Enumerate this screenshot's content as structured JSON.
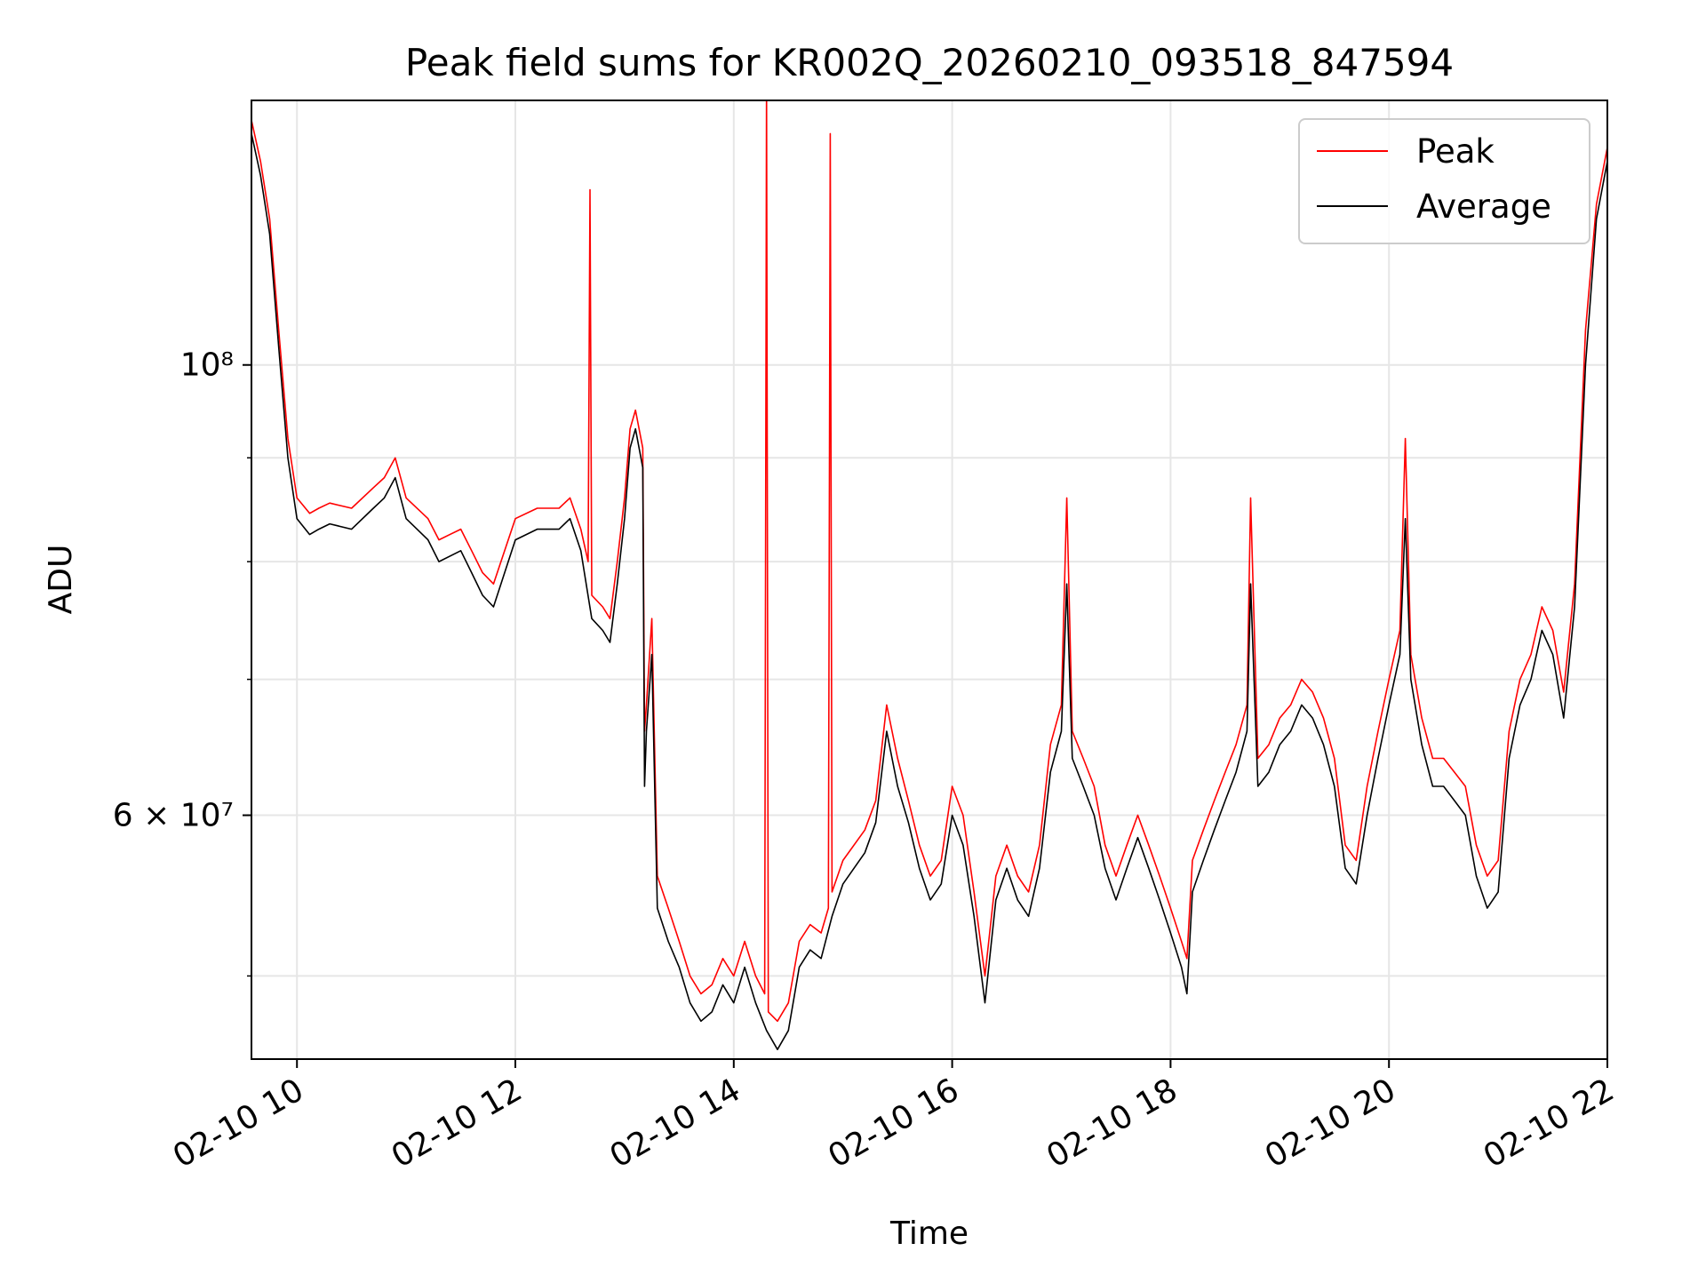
{
  "chart_data": {
    "type": "line",
    "title": "Peak field sums for KR002Q_20260210_093518_847594",
    "xlabel": "Time",
    "ylabel": "ADU",
    "x_unit": "hours since 2026-02-10 00:00",
    "xlim": [
      "2026-02-10 09:35",
      "2026-02-10 22:00"
    ],
    "ylim": [
      45500000,
      135000000
    ],
    "yscale": "log",
    "grid": true,
    "legend_position": "upper right",
    "x_ticks": [
      {
        "value": "2026-02-10 10:00",
        "label": "02-10 10"
      },
      {
        "value": "2026-02-10 12:00",
        "label": "02-10 12"
      },
      {
        "value": "2026-02-10 14:00",
        "label": "02-10 14"
      },
      {
        "value": "2026-02-10 16:00",
        "label": "02-10 16"
      },
      {
        "value": "2026-02-10 18:00",
        "label": "02-10 18"
      },
      {
        "value": "2026-02-10 20:00",
        "label": "02-10 20"
      },
      {
        "value": "2026-02-10 22:00",
        "label": "02-10 22"
      }
    ],
    "y_ticks_major": [
      {
        "value": 60000000,
        "label": "6 × 10⁷"
      },
      {
        "value": 100000000,
        "label": "10⁸"
      }
    ],
    "series": [
      {
        "name": "Peak",
        "color": "#ff0000",
        "x": [
          "2026-02-10 09:35",
          "2026-02-10 09:40",
          "2026-02-10 09:45",
          "2026-02-10 09:50",
          "2026-02-10 09:55",
          "2026-02-10 10:00",
          "2026-02-10 10:07",
          "2026-02-10 10:12",
          "2026-02-10 10:18",
          "2026-02-10 10:30",
          "2026-02-10 10:42",
          "2026-02-10 10:48",
          "2026-02-10 10:54",
          "2026-02-10 11:00",
          "2026-02-10 11:12",
          "2026-02-10 11:18",
          "2026-02-10 11:30",
          "2026-02-10 11:36",
          "2026-02-10 11:42",
          "2026-02-10 11:48",
          "2026-02-10 12:00",
          "2026-02-10 12:12",
          "2026-02-10 12:24",
          "2026-02-10 12:30",
          "2026-02-10 12:36",
          "2026-02-10 12:40",
          "2026-02-10 12:41",
          "2026-02-10 12:42",
          "2026-02-10 12:48",
          "2026-02-10 12:52",
          "2026-02-10 12:56",
          "2026-02-10 13:00",
          "2026-02-10 13:03",
          "2026-02-10 13:06",
          "2026-02-10 13:10",
          "2026-02-10 13:11",
          "2026-02-10 13:12",
          "2026-02-10 13:15",
          "2026-02-10 13:18",
          "2026-02-10 13:24",
          "2026-02-10 13:30",
          "2026-02-10 13:36",
          "2026-02-10 13:42",
          "2026-02-10 13:48",
          "2026-02-10 13:54",
          "2026-02-10 14:00",
          "2026-02-10 14:06",
          "2026-02-10 14:12",
          "2026-02-10 14:17",
          "2026-02-10 14:18",
          "2026-02-10 14:19",
          "2026-02-10 14:24",
          "2026-02-10 14:30",
          "2026-02-10 14:36",
          "2026-02-10 14:42",
          "2026-02-10 14:48",
          "2026-02-10 14:52",
          "2026-02-10 14:53",
          "2026-02-10 14:54",
          "2026-02-10 15:00",
          "2026-02-10 15:12",
          "2026-02-10 15:18",
          "2026-02-10 15:24",
          "2026-02-10 15:30",
          "2026-02-10 15:36",
          "2026-02-10 15:42",
          "2026-02-10 15:48",
          "2026-02-10 15:54",
          "2026-02-10 16:00",
          "2026-02-10 16:06",
          "2026-02-10 16:12",
          "2026-02-10 16:18",
          "2026-02-10 16:24",
          "2026-02-10 16:30",
          "2026-02-10 16:36",
          "2026-02-10 16:42",
          "2026-02-10 16:48",
          "2026-02-10 16:54",
          "2026-02-10 17:00",
          "2026-02-10 17:03",
          "2026-02-10 17:06",
          "2026-02-10 17:12",
          "2026-02-10 17:18",
          "2026-02-10 17:24",
          "2026-02-10 17:30",
          "2026-02-10 17:36",
          "2026-02-10 17:42",
          "2026-02-10 17:48",
          "2026-02-10 17:54",
          "2026-02-10 18:00",
          "2026-02-10 18:06",
          "2026-02-10 18:09",
          "2026-02-10 18:12",
          "2026-02-10 18:18",
          "2026-02-10 18:24",
          "2026-02-10 18:30",
          "2026-02-10 18:36",
          "2026-02-10 18:42",
          "2026-02-10 18:44",
          "2026-02-10 18:48",
          "2026-02-10 18:54",
          "2026-02-10 19:00",
          "2026-02-10 19:06",
          "2026-02-10 19:12",
          "2026-02-10 19:18",
          "2026-02-10 19:24",
          "2026-02-10 19:30",
          "2026-02-10 19:36",
          "2026-02-10 19:42",
          "2026-02-10 19:48",
          "2026-02-10 19:54",
          "2026-02-10 20:00",
          "2026-02-10 20:06",
          "2026-02-10 20:09",
          "2026-02-10 20:12",
          "2026-02-10 20:18",
          "2026-02-10 20:24",
          "2026-02-10 20:30",
          "2026-02-10 20:36",
          "2026-02-10 20:42",
          "2026-02-10 20:48",
          "2026-02-10 20:54",
          "2026-02-10 21:00",
          "2026-02-10 21:06",
          "2026-02-10 21:12",
          "2026-02-10 21:18",
          "2026-02-10 21:24",
          "2026-02-10 21:30",
          "2026-02-10 21:36",
          "2026-02-10 21:42",
          "2026-02-10 21:48",
          "2026-02-10 21:54",
          "2026-02-10 22:00"
        ],
        "values": [
          132000000,
          126000000,
          118000000,
          104000000,
          92000000,
          86000000,
          84500000,
          85000000,
          85500000,
          85000000,
          87000000,
          88000000,
          90000000,
          86000000,
          84000000,
          82000000,
          83000000,
          81000000,
          79000000,
          78000000,
          84000000,
          85000000,
          85000000,
          86000000,
          83000000,
          80000000,
          122000000,
          77000000,
          76000000,
          75000000,
          80000000,
          86000000,
          93000000,
          95000000,
          91000000,
          66000000,
          68000000,
          75000000,
          56000000,
          54000000,
          52000000,
          50000000,
          49000000,
          49500000,
          51000000,
          50000000,
          52000000,
          50000000,
          49000000,
          138000000,
          48000000,
          47500000,
          48500000,
          52000000,
          53000000,
          52500000,
          54000000,
          130000000,
          55000000,
          57000000,
          59000000,
          61000000,
          68000000,
          64000000,
          61000000,
          58000000,
          56000000,
          57000000,
          62000000,
          60000000,
          55000000,
          50000000,
          56000000,
          58000000,
          56000000,
          55000000,
          58000000,
          65000000,
          68000000,
          86000000,
          66000000,
          64000000,
          62000000,
          58000000,
          56000000,
          58000000,
          60000000,
          58000000,
          56000000,
          54000000,
          52000000,
          51000000,
          57000000,
          59000000,
          61000000,
          63000000,
          65000000,
          68000000,
          86000000,
          64000000,
          65000000,
          67000000,
          68000000,
          70000000,
          69000000,
          67000000,
          64000000,
          58000000,
          57000000,
          62000000,
          66000000,
          70000000,
          74000000,
          92000000,
          72000000,
          67000000,
          64000000,
          64000000,
          63000000,
          62000000,
          58000000,
          56000000,
          57000000,
          66000000,
          70000000,
          72000000,
          76000000,
          74000000,
          69000000,
          78000000,
          104000000,
          120000000,
          128000000
        ]
      },
      {
        "name": "Average",
        "color": "#000000",
        "x": [
          "2026-02-10 09:35",
          "2026-02-10 09:40",
          "2026-02-10 09:45",
          "2026-02-10 09:50",
          "2026-02-10 09:55",
          "2026-02-10 10:00",
          "2026-02-10 10:07",
          "2026-02-10 10:12",
          "2026-02-10 10:18",
          "2026-02-10 10:30",
          "2026-02-10 10:42",
          "2026-02-10 10:48",
          "2026-02-10 10:54",
          "2026-02-10 11:00",
          "2026-02-10 11:12",
          "2026-02-10 11:18",
          "2026-02-10 11:30",
          "2026-02-10 11:36",
          "2026-02-10 11:42",
          "2026-02-10 11:48",
          "2026-02-10 12:00",
          "2026-02-10 12:12",
          "2026-02-10 12:24",
          "2026-02-10 12:30",
          "2026-02-10 12:36",
          "2026-02-10 12:42",
          "2026-02-10 12:48",
          "2026-02-10 12:52",
          "2026-02-10 12:56",
          "2026-02-10 13:00",
          "2026-02-10 13:03",
          "2026-02-10 13:06",
          "2026-02-10 13:10",
          "2026-02-10 13:11",
          "2026-02-10 13:12",
          "2026-02-10 13:15",
          "2026-02-10 13:18",
          "2026-02-10 13:24",
          "2026-02-10 13:30",
          "2026-02-10 13:36",
          "2026-02-10 13:42",
          "2026-02-10 13:48",
          "2026-02-10 13:54",
          "2026-02-10 14:00",
          "2026-02-10 14:06",
          "2026-02-10 14:12",
          "2026-02-10 14:18",
          "2026-02-10 14:24",
          "2026-02-10 14:30",
          "2026-02-10 14:36",
          "2026-02-10 14:42",
          "2026-02-10 14:48",
          "2026-02-10 14:54",
          "2026-02-10 15:00",
          "2026-02-10 15:12",
          "2026-02-10 15:18",
          "2026-02-10 15:24",
          "2026-02-10 15:30",
          "2026-02-10 15:36",
          "2026-02-10 15:42",
          "2026-02-10 15:48",
          "2026-02-10 15:54",
          "2026-02-10 16:00",
          "2026-02-10 16:06",
          "2026-02-10 16:12",
          "2026-02-10 16:18",
          "2026-02-10 16:24",
          "2026-02-10 16:30",
          "2026-02-10 16:36",
          "2026-02-10 16:42",
          "2026-02-10 16:48",
          "2026-02-10 16:54",
          "2026-02-10 17:00",
          "2026-02-10 17:03",
          "2026-02-10 17:06",
          "2026-02-10 17:12",
          "2026-02-10 17:18",
          "2026-02-10 17:24",
          "2026-02-10 17:30",
          "2026-02-10 17:36",
          "2026-02-10 17:42",
          "2026-02-10 17:48",
          "2026-02-10 17:54",
          "2026-02-10 18:00",
          "2026-02-10 18:06",
          "2026-02-10 18:09",
          "2026-02-10 18:12",
          "2026-02-10 18:18",
          "2026-02-10 18:24",
          "2026-02-10 18:30",
          "2026-02-10 18:36",
          "2026-02-10 18:42",
          "2026-02-10 18:44",
          "2026-02-10 18:48",
          "2026-02-10 18:54",
          "2026-02-10 19:00",
          "2026-02-10 19:06",
          "2026-02-10 19:12",
          "2026-02-10 19:18",
          "2026-02-10 19:24",
          "2026-02-10 19:30",
          "2026-02-10 19:36",
          "2026-02-10 19:42",
          "2026-02-10 19:48",
          "2026-02-10 19:54",
          "2026-02-10 20:00",
          "2026-02-10 20:06",
          "2026-02-10 20:09",
          "2026-02-10 20:12",
          "2026-02-10 20:18",
          "2026-02-10 20:24",
          "2026-02-10 20:30",
          "2026-02-10 20:36",
          "2026-02-10 20:42",
          "2026-02-10 20:48",
          "2026-02-10 20:54",
          "2026-02-10 21:00",
          "2026-02-10 21:06",
          "2026-02-10 21:12",
          "2026-02-10 21:18",
          "2026-02-10 21:24",
          "2026-02-10 21:30",
          "2026-02-10 21:36",
          "2026-02-10 21:42",
          "2026-02-10 21:48",
          "2026-02-10 21:54",
          "2026-02-10 22:00"
        ],
        "values": [
          130000000,
          124000000,
          116000000,
          102000000,
          90000000,
          84000000,
          82500000,
          83000000,
          83500000,
          83000000,
          85000000,
          86000000,
          88000000,
          84000000,
          82000000,
          80000000,
          81000000,
          79000000,
          77000000,
          76000000,
          82000000,
          83000000,
          83000000,
          84000000,
          81000000,
          75000000,
          74000000,
          73000000,
          78000000,
          84000000,
          91000000,
          93000000,
          89000000,
          62000000,
          66000000,
          72000000,
          54000000,
          52000000,
          50500000,
          48500000,
          47500000,
          48000000,
          49500000,
          48500000,
          50500000,
          48500000,
          47000000,
          46000000,
          47000000,
          50500000,
          51500000,
          51000000,
          53500000,
          55500000,
          57500000,
          59500000,
          66000000,
          62000000,
          59500000,
          56500000,
          54500000,
          55500000,
          60000000,
          58000000,
          53500000,
          48500000,
          54500000,
          56500000,
          54500000,
          53500000,
          56500000,
          63000000,
          66000000,
          78000000,
          64000000,
          62000000,
          60000000,
          56500000,
          54500000,
          56500000,
          58500000,
          56500000,
          54500000,
          52500000,
          50500000,
          49000000,
          55000000,
          57000000,
          59000000,
          61000000,
          63000000,
          66000000,
          78000000,
          62000000,
          63000000,
          65000000,
          66000000,
          68000000,
          67000000,
          65000000,
          62000000,
          56500000,
          55500000,
          60000000,
          64000000,
          68000000,
          72000000,
          84000000,
          70000000,
          65000000,
          62000000,
          62000000,
          61000000,
          60000000,
          56000000,
          54000000,
          55000000,
          64000000,
          68000000,
          70000000,
          74000000,
          72000000,
          67000000,
          76000000,
          100000000,
          118000000,
          126000000
        ]
      }
    ]
  }
}
